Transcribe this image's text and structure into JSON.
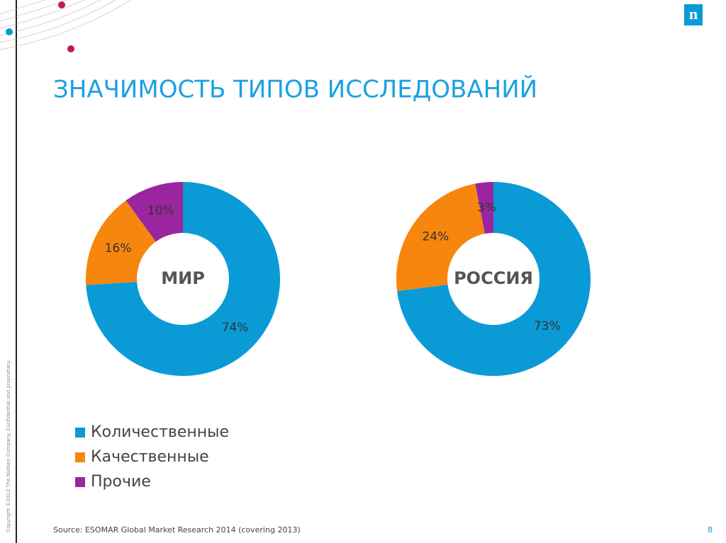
{
  "title": "ЗНАЧИМОСТЬ ТИПОВ ИССЛЕДОВАНИЙ",
  "logo": "n",
  "copyright": "Copyright ©2012 The Nielsen Company. Confidential and proprietary.",
  "source": "Source: ESOMAR Global Market Research 2014 (covering 2013)",
  "page_number": "8",
  "chart_data": [
    {
      "type": "donut",
      "center_label": "МИР",
      "categories": [
        "Количественные",
        "Качественные",
        "Прочие"
      ],
      "values": [
        74,
        16,
        10
      ],
      "value_labels": [
        "74%",
        "16%",
        "10%"
      ],
      "colors": [
        "#0a9bd7",
        "#f7860f",
        "#9b259e"
      ]
    },
    {
      "type": "donut",
      "center_label": "РОССИЯ",
      "categories": [
        "Количественные",
        "Качественные",
        "Прочие"
      ],
      "values": [
        73,
        24,
        3
      ],
      "value_labels": [
        "73%",
        "24%",
        "3%"
      ],
      "colors": [
        "#0a9bd7",
        "#f7860f",
        "#9b259e"
      ]
    }
  ]
}
